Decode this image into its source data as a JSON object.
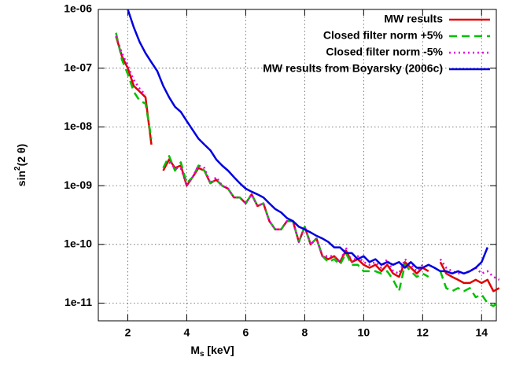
{
  "chart_data": {
    "type": "line",
    "xlabel": {
      "base": "M",
      "sub": "s",
      "rest": " [keV]"
    },
    "ylabel": {
      "base": "sin",
      "sup": "2",
      "rest": "(2 θ)"
    },
    "log_y": true,
    "grid": true,
    "legend": "top-right",
    "xlim": [
      1,
      14.5
    ],
    "ylim": [
      5e-12,
      1e-06
    ],
    "xticks": [
      2,
      4,
      6,
      8,
      10,
      12,
      14
    ],
    "yticks": [
      {
        "value": 1e-11,
        "label": "1e-11"
      },
      {
        "value": 1e-10,
        "label": "1e-10"
      },
      {
        "value": 1e-09,
        "label": "1e-09"
      },
      {
        "value": 1e-08,
        "label": "1e-08"
      },
      {
        "value": 1e-07,
        "label": "1e-07"
      },
      {
        "value": 1e-06,
        "label": "1e-06"
      }
    ],
    "x": [
      1.6,
      1.8,
      2.0,
      2.2,
      2.4,
      2.6,
      2.8,
      3.0,
      3.2,
      3.4,
      3.6,
      3.8,
      4.0,
      4.2,
      4.4,
      4.6,
      4.8,
      5.0,
      5.2,
      5.4,
      5.6,
      5.8,
      6.0,
      6.2,
      6.4,
      6.6,
      6.8,
      7.0,
      7.2,
      7.4,
      7.6,
      7.8,
      8.0,
      8.2,
      8.4,
      8.6,
      8.8,
      9.0,
      9.2,
      9.4,
      9.6,
      9.8,
      10.0,
      10.2,
      10.4,
      10.6,
      10.8,
      11.0,
      11.2,
      11.4,
      11.6,
      11.8,
      12.0,
      12.2,
      12.4,
      12.6,
      12.8,
      13.0,
      13.2,
      13.4,
      13.6,
      13.8,
      14.0,
      14.2,
      14.4,
      14.6
    ],
    "series": [
      {
        "name": "MW results",
        "color": "#e00000",
        "dash": "solid",
        "values": [
          3.5e-07,
          1.6e-07,
          1e-07,
          5e-08,
          4e-08,
          3.2e-08,
          5e-09,
          null,
          1.8e-09,
          2.8e-09,
          2e-09,
          2.2e-09,
          1e-09,
          1.4e-09,
          2e-09,
          1.8e-09,
          1.1e-09,
          1.26e-09,
          1e-09,
          8.9e-10,
          6.3e-10,
          6.3e-10,
          5e-10,
          7.1e-10,
          4.5e-10,
          5e-10,
          2.5e-10,
          1.8e-10,
          1.8e-10,
          2.5e-10,
          2.5e-10,
          1.1e-10,
          2e-10,
          1e-10,
          1.26e-10,
          6.3e-11,
          5.6e-11,
          6.3e-11,
          5e-11,
          7.9e-11,
          5e-11,
          5.6e-11,
          4.5e-11,
          4e-11,
          4.5e-11,
          3.5e-11,
          4.5e-11,
          3.2e-11,
          2.8e-11,
          5e-11,
          4e-11,
          3.2e-11,
          4e-11,
          3.5e-11,
          null,
          5e-11,
          3.2e-11,
          2.8e-11,
          2.5e-11,
          2.2e-11,
          2.2e-11,
          2.5e-11,
          2.2e-11,
          2.5e-11,
          1.6e-11,
          1.8e-11
        ]
      },
      {
        "name": "Closed filter norm +5%",
        "color": "#00c000",
        "dash": "dashed",
        "values": [
          4e-07,
          1.4e-07,
          7.9e-08,
          4e-08,
          2.8e-08,
          2.5e-08,
          6.3e-09,
          null,
          2e-09,
          3.2e-09,
          1.8e-09,
          2.5e-09,
          1.1e-09,
          1.4e-09,
          2.2e-09,
          1.8e-09,
          1.1e-09,
          1.26e-09,
          1e-09,
          8.9e-10,
          6.3e-10,
          6.3e-10,
          5e-10,
          7.1e-10,
          4.5e-10,
          5e-10,
          2.5e-10,
          1.8e-10,
          1.8e-10,
          2.5e-10,
          2.5e-10,
          1.1e-10,
          2e-10,
          1e-10,
          1.26e-10,
          6.3e-11,
          5e-11,
          5.6e-11,
          4.5e-11,
          7.1e-11,
          4.5e-11,
          4.5e-11,
          3.5e-11,
          3.5e-11,
          3.5e-11,
          3.2e-11,
          3.5e-11,
          2.5e-11,
          1.6e-11,
          4.5e-11,
          3.5e-11,
          2.8e-11,
          3.2e-11,
          2.8e-11,
          null,
          3.5e-11,
          1.8e-11,
          1.6e-11,
          1.8e-11,
          1.6e-11,
          1.8e-11,
          1.26e-11,
          1.4e-11,
          1e-11,
          8.9e-12,
          1.1e-11
        ]
      },
      {
        "name": "Closed filter norm -5%",
        "color": "#e000e0",
        "dash": "dotted",
        "values": [
          3.5e-07,
          1.8e-07,
          1.1e-07,
          6.3e-08,
          4.5e-08,
          3.5e-08,
          null,
          null,
          null,
          2.5e-09,
          2e-09,
          2e-09,
          1e-09,
          1.4e-09,
          2.2e-09,
          2e-09,
          1.1e-09,
          1.4e-09,
          1e-09,
          8.9e-10,
          6.3e-10,
          6.3e-10,
          5e-10,
          7.1e-10,
          4.5e-10,
          5e-10,
          2.5e-10,
          1.8e-10,
          1.8e-10,
          2.5e-10,
          2.5e-10,
          1.1e-10,
          2e-10,
          1e-10,
          1.26e-10,
          6.3e-11,
          6.3e-11,
          6.3e-11,
          5e-11,
          8.9e-11,
          5e-11,
          6.3e-11,
          5e-11,
          4.5e-11,
          5e-11,
          4e-11,
          5.6e-11,
          3.5e-11,
          3.2e-11,
          5.6e-11,
          4.5e-11,
          3.5e-11,
          4.5e-11,
          4e-11,
          null,
          5.6e-11,
          4e-11,
          3.5e-11,
          3.2e-11,
          3.2e-11,
          3.5e-11,
          4e-11,
          3.2e-11,
          3.5e-11,
          2.8e-11,
          2.5e-11
        ]
      },
      {
        "name": "MW results from Boyarsky (2006c)",
        "color": "#0000e0",
        "dash": "solid",
        "values": [
          null,
          null,
          1e-06,
          5e-07,
          2.8e-07,
          1.8e-07,
          1.26e-07,
          8.9e-08,
          5e-08,
          3.2e-08,
          2.2e-08,
          1.8e-08,
          1.26e-08,
          8.9e-09,
          6.3e-09,
          5e-09,
          4e-09,
          2.8e-09,
          2.2e-09,
          1.8e-09,
          1.4e-09,
          1.1e-09,
          8.9e-10,
          7.9e-10,
          7.1e-10,
          6.3e-10,
          5e-10,
          4e-10,
          3.5e-10,
          2.8e-10,
          2.5e-10,
          2e-10,
          1.8e-10,
          1.6e-10,
          1.4e-10,
          1.26e-10,
          1.1e-10,
          8.9e-11,
          8.9e-11,
          7.1e-11,
          7.1e-11,
          5.6e-11,
          6.3e-11,
          5e-11,
          5.6e-11,
          4.5e-11,
          5e-11,
          4.5e-11,
          5e-11,
          4e-11,
          5e-11,
          4e-11,
          4e-11,
          4.5e-11,
          4e-11,
          3.5e-11,
          3.5e-11,
          3.2e-11,
          3.5e-11,
          3.2e-11,
          3.5e-11,
          4e-11,
          5e-11,
          8.9e-11,
          null,
          null
        ]
      }
    ]
  }
}
